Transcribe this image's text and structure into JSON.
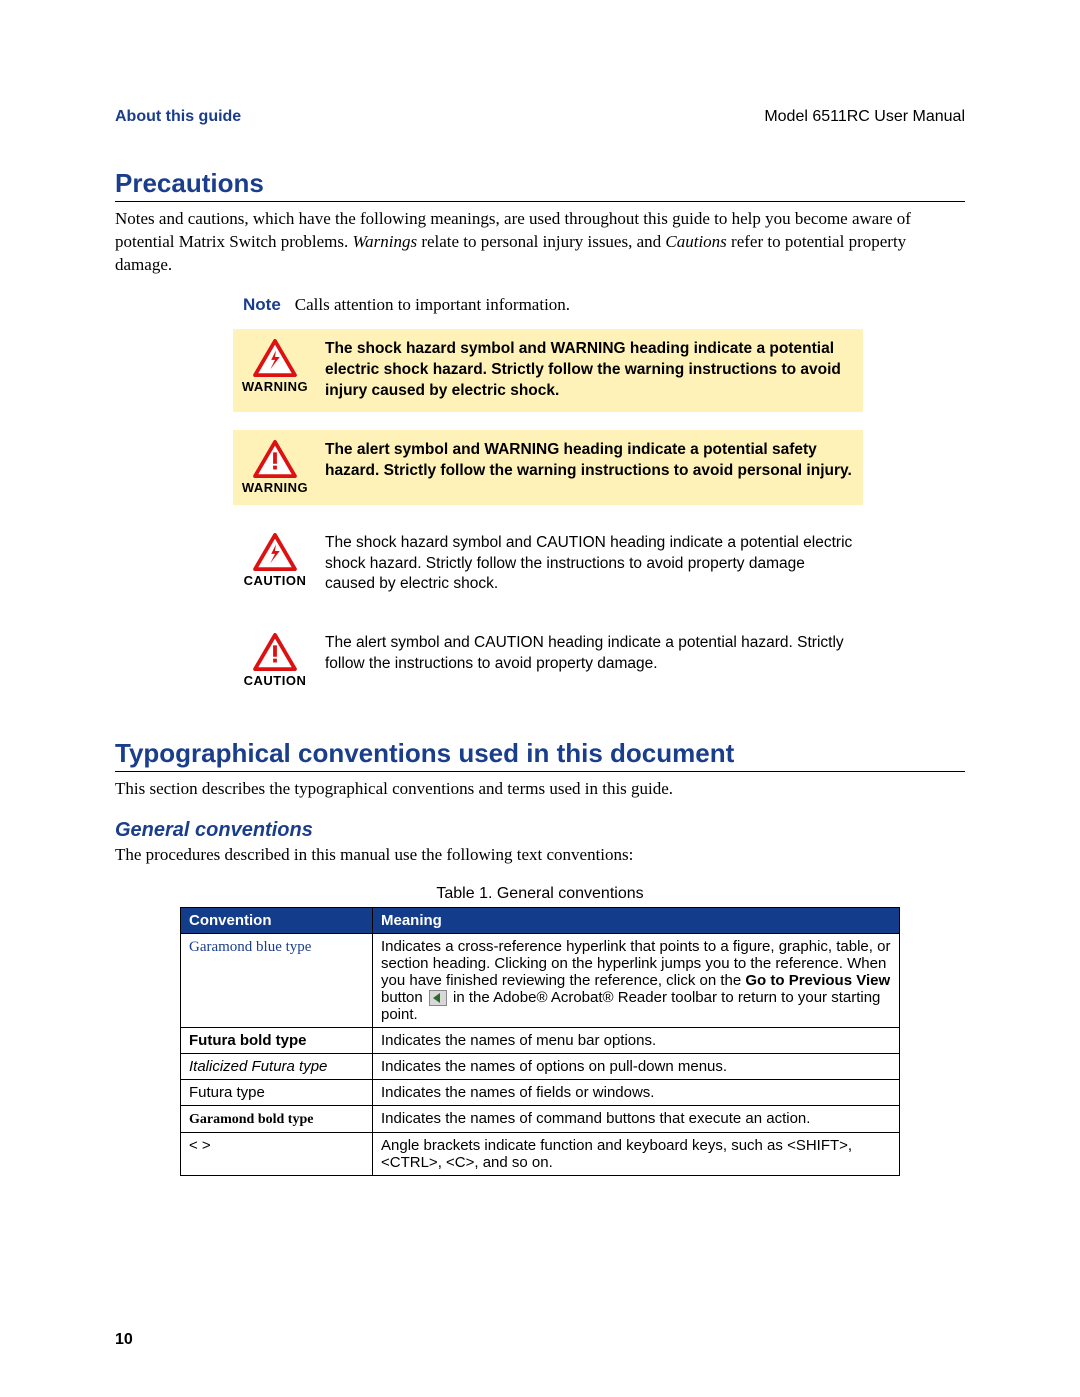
{
  "header": {
    "left": "About this guide",
    "right": "Model 6511RC User Manual"
  },
  "section1": {
    "title": "Precautions",
    "intro_prefix": "Notes and cautions, which have the following meanings, are used throughout this guide to help you become aware of potential Matrix Switch problems. ",
    "intro_warnings_word": "Warnings",
    "intro_mid": " relate to personal injury issues, and ",
    "intro_cautions_word": "Cautions",
    "intro_suffix": " refer to potential property damage.",
    "note_label": "Note",
    "note_text": "Calls attention to important information.",
    "callouts": [
      {
        "icon": "shock",
        "label": "WARNING",
        "yellow": true,
        "bold": true,
        "text": "The shock hazard symbol and WARNING heading indicate a potential electric shock hazard. Strictly follow the warning instructions to avoid injury caused by electric shock."
      },
      {
        "icon": "alert",
        "label": "WARNING",
        "yellow": true,
        "bold": true,
        "text": "The alert symbol and WARNING heading indicate a potential safety hazard. Strictly follow the warning instructions to avoid personal injury."
      },
      {
        "icon": "shock",
        "label": "CAUTION",
        "yellow": false,
        "bold": false,
        "text": "The shock hazard symbol and CAUTION heading indicate a potential electric shock hazard. Strictly follow the instructions to avoid property damage caused by electric shock."
      },
      {
        "icon": "alert",
        "label": "CAUTION",
        "yellow": false,
        "bold": false,
        "text": "The alert symbol and CAUTION heading indicate a potential hazard. Strictly follow the instructions to avoid property damage."
      }
    ]
  },
  "section2": {
    "title": "Typographical conventions used in this document",
    "intro": "This section describes the typographical conventions and terms used in this guide.",
    "sub_title": "General conventions",
    "sub_intro": "The procedures described in this manual use the following text conventions:",
    "table_caption": "Table 1. General conventions",
    "columns": [
      "Convention",
      "Meaning"
    ],
    "rows": [
      {
        "conv_style": "garamond-blue",
        "conv": "Garamond blue type",
        "meaning_pre": "Indicates a cross-reference hyperlink that points to a figure, graphic, table, or section heading. Clicking on the hyperlink jumps you to the reference. When you have finished reviewing the reference, click on the ",
        "meaning_bold": "Go to Previous View",
        "meaning_mid": " button ",
        "has_prev_icon": true,
        "meaning_post": " in the Adobe® Acrobat® Reader toolbar to return to your starting point."
      },
      {
        "conv_style": "futura-bold",
        "conv": "Futura bold type",
        "meaning": "Indicates the names of menu bar options."
      },
      {
        "conv_style": "futura-italic",
        "conv": "Italicized Futura type",
        "meaning": "Indicates the names of options on pull-down menus."
      },
      {
        "conv_style": "futura",
        "conv": "Futura type",
        "meaning": "Indicates the names of fields or windows."
      },
      {
        "conv_style": "garamond-bold",
        "conv": "Garamond bold type",
        "meaning": "Indicates the names of command buttons that execute an action."
      },
      {
        "conv_style": "futura",
        "conv": "< >",
        "meaning": "Angle brackets indicate function and keyboard keys, such as <SHIFT>, <CTRL>, <C>, and so on."
      }
    ]
  },
  "page_number": "10"
}
